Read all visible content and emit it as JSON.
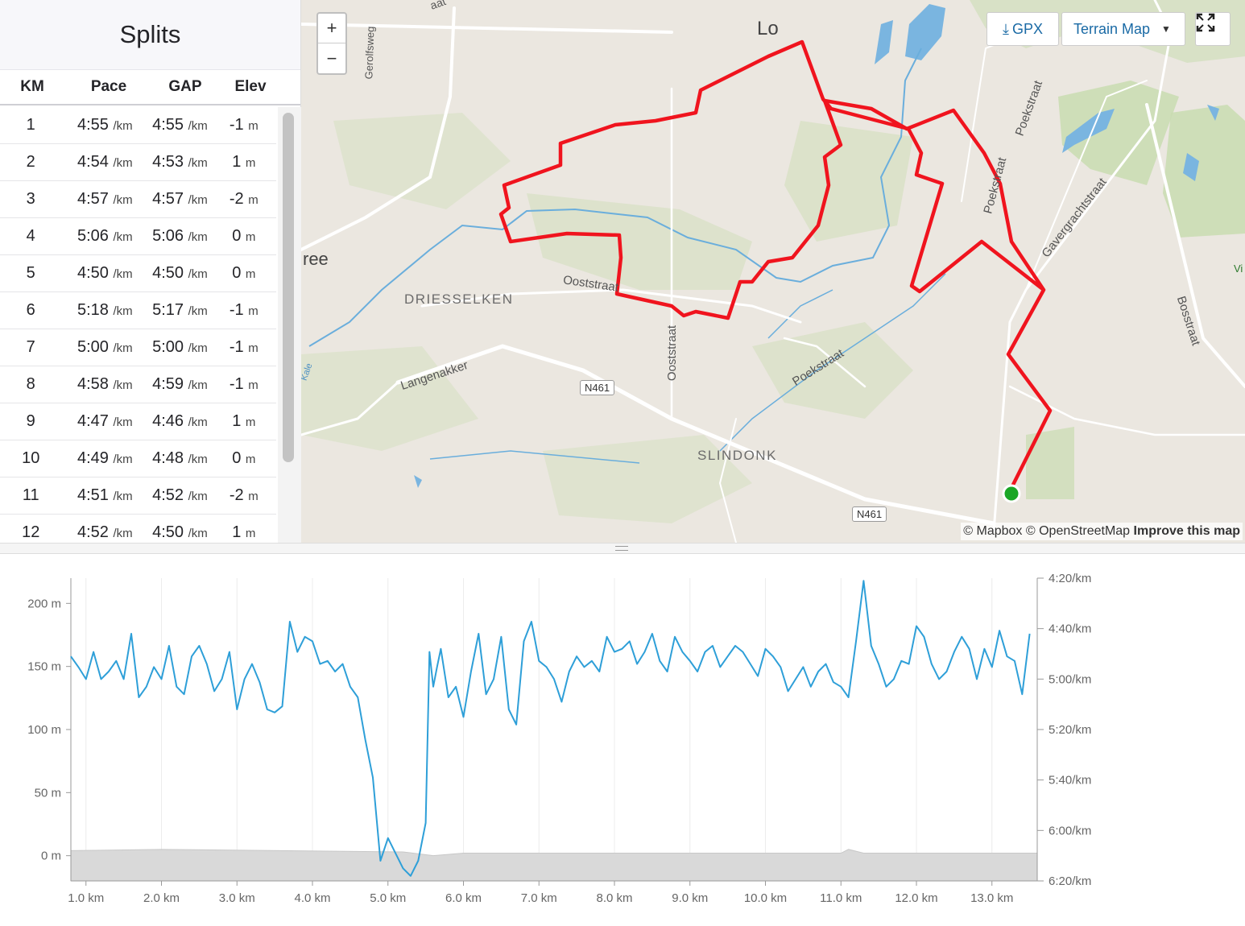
{
  "splits": {
    "title": "Splits",
    "columns": [
      "KM",
      "Pace",
      "GAP",
      "Elev"
    ],
    "pace_unit": "/km",
    "elev_unit": "m",
    "rows": [
      {
        "km": "1",
        "pace": "4:55",
        "gap": "4:55",
        "elev": "-1"
      },
      {
        "km": "2",
        "pace": "4:54",
        "gap": "4:53",
        "elev": "1"
      },
      {
        "km": "3",
        "pace": "4:57",
        "gap": "4:57",
        "elev": "-2"
      },
      {
        "km": "4",
        "pace": "5:06",
        "gap": "5:06",
        "elev": "0"
      },
      {
        "km": "5",
        "pace": "4:50",
        "gap": "4:50",
        "elev": "0"
      },
      {
        "km": "6",
        "pace": "5:18",
        "gap": "5:17",
        "elev": "-1"
      },
      {
        "km": "7",
        "pace": "5:00",
        "gap": "5:00",
        "elev": "-1"
      },
      {
        "km": "8",
        "pace": "4:58",
        "gap": "4:59",
        "elev": "-1"
      },
      {
        "km": "9",
        "pace": "4:47",
        "gap": "4:46",
        "elev": "1"
      },
      {
        "km": "10",
        "pace": "4:49",
        "gap": "4:48",
        "elev": "0"
      },
      {
        "km": "11",
        "pace": "4:51",
        "gap": "4:52",
        "elev": "-2"
      },
      {
        "km": "12",
        "pace": "4:52",
        "gap": "4:50",
        "elev": "1"
      }
    ]
  },
  "map": {
    "zoom_in": "+",
    "zoom_out": "−",
    "gpx_label": "GPX",
    "map_type": "Terrain Map",
    "fullscreen_icon": "expand-icon",
    "attribution": {
      "mapbox": "© Mapbox",
      "osm": "© OpenStreetMap",
      "improve": "Improve this map"
    },
    "labels": {
      "lo": "Lo",
      "gerolfsweg": "Gerolfsweg",
      "ree": "ree",
      "driesselken": "DRIESSELKEN",
      "ooststraat1": "Ooststraat",
      "ooststraat2": "Ooststraat",
      "langenakker": "Langenakker",
      "n461a": "N461",
      "n461b": "N461",
      "slindonk": "SLINDONK",
      "poekstraat1": "Poekstraat",
      "poekstraat2": "Poekstraat",
      "poekstraat3": "Poekstraat",
      "gavergrachtstraat": "Gavergrachtstraat",
      "bosstraat": "Bosstraat",
      "kale": "Kale",
      "vi": "Vi",
      "aat": "aat"
    },
    "colors": {
      "route": "#f0141e",
      "start": "#1aa625",
      "land": "#ebe7e0",
      "green": "#c9dcb0",
      "water": "#5ea8d8"
    }
  },
  "chart_data": {
    "type": "line",
    "x_unit": "km",
    "x_ticks": [
      "1.0 km",
      "2.0 km",
      "3.0 km",
      "4.0 km",
      "5.0 km",
      "6.0 km",
      "7.0 km",
      "8.0 km",
      "9.0 km",
      "10.0 km",
      "11.0 km",
      "12.0 km",
      "13.0 km"
    ],
    "y_left_ticks": [
      "200 m",
      "150 m",
      "100 m",
      "50 m",
      "0 m"
    ],
    "y_right_ticks": [
      "4:20/km",
      "4:40/km",
      "5:00/km",
      "5:20/km",
      "5:40/km",
      "6:00/km",
      "6:20/km"
    ],
    "xlim": [
      0.8,
      13.6
    ],
    "pace_ylim_minutes": [
      4.333,
      6.333
    ],
    "elev_ylim": [
      -20,
      220
    ],
    "series": [
      {
        "type": "line",
        "color": "#2e9fd8",
        "x": [
          0.8,
          0.9,
          1.0,
          1.1,
          1.2,
          1.3,
          1.4,
          1.5,
          1.6,
          1.7,
          1.8,
          1.9,
          2.0,
          2.1,
          2.2,
          2.3,
          2.4,
          2.5,
          2.6,
          2.7,
          2.8,
          2.9,
          3.0,
          3.1,
          3.2,
          3.3,
          3.4,
          3.5,
          3.6,
          3.7,
          3.8,
          3.9,
          4.0,
          4.1,
          4.2,
          4.3,
          4.4,
          4.5,
          4.6,
          4.7,
          4.8,
          4.9,
          5.0,
          5.1,
          5.2,
          5.3,
          5.4,
          5.5,
          5.55,
          5.6,
          5.65,
          5.7,
          5.8,
          5.9,
          6.0,
          6.1,
          6.2,
          6.3,
          6.4,
          6.5,
          6.6,
          6.7,
          6.8,
          6.9,
          7.0,
          7.1,
          7.2,
          7.3,
          7.4,
          7.5,
          7.6,
          7.7,
          7.8,
          7.9,
          8.0,
          8.1,
          8.2,
          8.3,
          8.4,
          8.5,
          8.6,
          8.7,
          8.8,
          8.9,
          9.0,
          9.1,
          9.2,
          9.3,
          9.4,
          9.5,
          9.6,
          9.7,
          9.8,
          9.9,
          10.0,
          10.1,
          10.2,
          10.3,
          10.4,
          10.5,
          10.6,
          10.7,
          10.8,
          10.9,
          11.0,
          11.1,
          11.2,
          11.3,
          11.4,
          11.5,
          11.6,
          11.7,
          11.8,
          11.9,
          12.0,
          12.1,
          12.2,
          12.3,
          12.4,
          12.5,
          12.6,
          12.7,
          12.8,
          12.9,
          13.0,
          13.1,
          13.2,
          13.3,
          13.4,
          13.5
        ],
        "y": [
          4.85,
          4.92,
          5.0,
          4.82,
          5.0,
          4.95,
          4.88,
          5.0,
          4.7,
          5.12,
          5.05,
          4.92,
          5.0,
          4.78,
          5.05,
          5.1,
          4.85,
          4.78,
          4.9,
          5.08,
          5.0,
          4.82,
          5.2,
          5.0,
          4.9,
          5.02,
          5.2,
          5.22,
          5.18,
          4.62,
          4.82,
          4.72,
          4.75,
          4.9,
          4.88,
          4.95,
          4.9,
          5.05,
          5.12,
          5.4,
          5.65,
          6.2,
          6.05,
          6.15,
          6.25,
          6.3,
          6.2,
          5.95,
          4.82,
          5.05,
          4.92,
          4.8,
          5.12,
          5.05,
          5.25,
          4.95,
          4.7,
          5.1,
          5.0,
          4.72,
          5.2,
          5.3,
          4.75,
          4.62,
          4.88,
          4.92,
          5.0,
          5.15,
          4.95,
          4.85,
          4.92,
          4.88,
          4.95,
          4.72,
          4.82,
          4.8,
          4.75,
          4.9,
          4.82,
          4.7,
          4.88,
          4.95,
          4.72,
          4.82,
          4.88,
          4.95,
          4.82,
          4.78,
          4.92,
          4.85,
          4.78,
          4.82,
          4.9,
          4.98,
          4.8,
          4.85,
          4.92,
          5.08,
          5.0,
          4.92,
          5.05,
          4.95,
          4.9,
          5.02,
          5.05,
          5.12,
          4.75,
          4.35,
          4.78,
          4.9,
          5.05,
          5.0,
          4.88,
          4.9,
          4.65,
          4.72,
          4.9,
          5.0,
          4.95,
          4.82,
          4.72,
          4.8,
          5.0,
          4.8,
          4.92,
          4.68,
          4.85,
          4.88,
          5.1,
          4.7
        ]
      },
      {
        "type": "area",
        "color": "#d9d9d9",
        "x": [
          0.8,
          2.0,
          5.2,
          5.6,
          6.0,
          9.0,
          11.0,
          11.1,
          11.3,
          13.6
        ],
        "y": [
          4,
          5,
          3,
          0,
          2,
          2,
          2,
          5,
          2,
          2
        ]
      }
    ]
  }
}
